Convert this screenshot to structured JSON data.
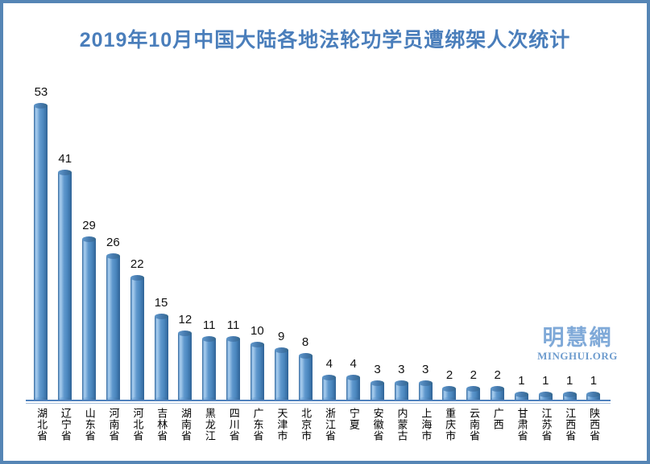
{
  "page": {
    "border_color": "#5585B5",
    "background": "#FFFFFF"
  },
  "title": {
    "text": "2019年10月中国大陆各地法轮功学员遭绑架人次统计",
    "color": "#4A7EBB"
  },
  "watermark": {
    "cn": "明慧網",
    "en": "MINGHUI.ORG",
    "color": "#7FA9D8"
  },
  "chart_data": {
    "type": "bar",
    "orientation": "vertical",
    "bar_style": "cylinder",
    "title": "2019年10月中国大陆各地法轮功学员遭绑架人次统计",
    "categories": [
      "湖北省",
      "辽宁省",
      "山东省",
      "河南省",
      "河北省",
      "吉林省",
      "湖南省",
      "黑龙江",
      "四川省",
      "广东省",
      "天津市",
      "北京市",
      "浙江省",
      "宁夏",
      "安徽省",
      "内蒙古",
      "上海市",
      "重庆市",
      "云南省",
      "广西",
      "甘肃省",
      "江苏省",
      "江西省",
      "陕西省"
    ],
    "values": [
      53,
      41,
      29,
      26,
      22,
      15,
      12,
      11,
      11,
      10,
      9,
      8,
      4,
      4,
      3,
      3,
      3,
      2,
      2,
      2,
      1,
      1,
      1,
      1
    ],
    "xlabel": "",
    "ylabel": "",
    "ylim": [
      0,
      55
    ],
    "grid": false,
    "legend": false,
    "value_labels": true,
    "bar_color": "#4E8BC4",
    "axis_line_color": "#4F81BD"
  }
}
